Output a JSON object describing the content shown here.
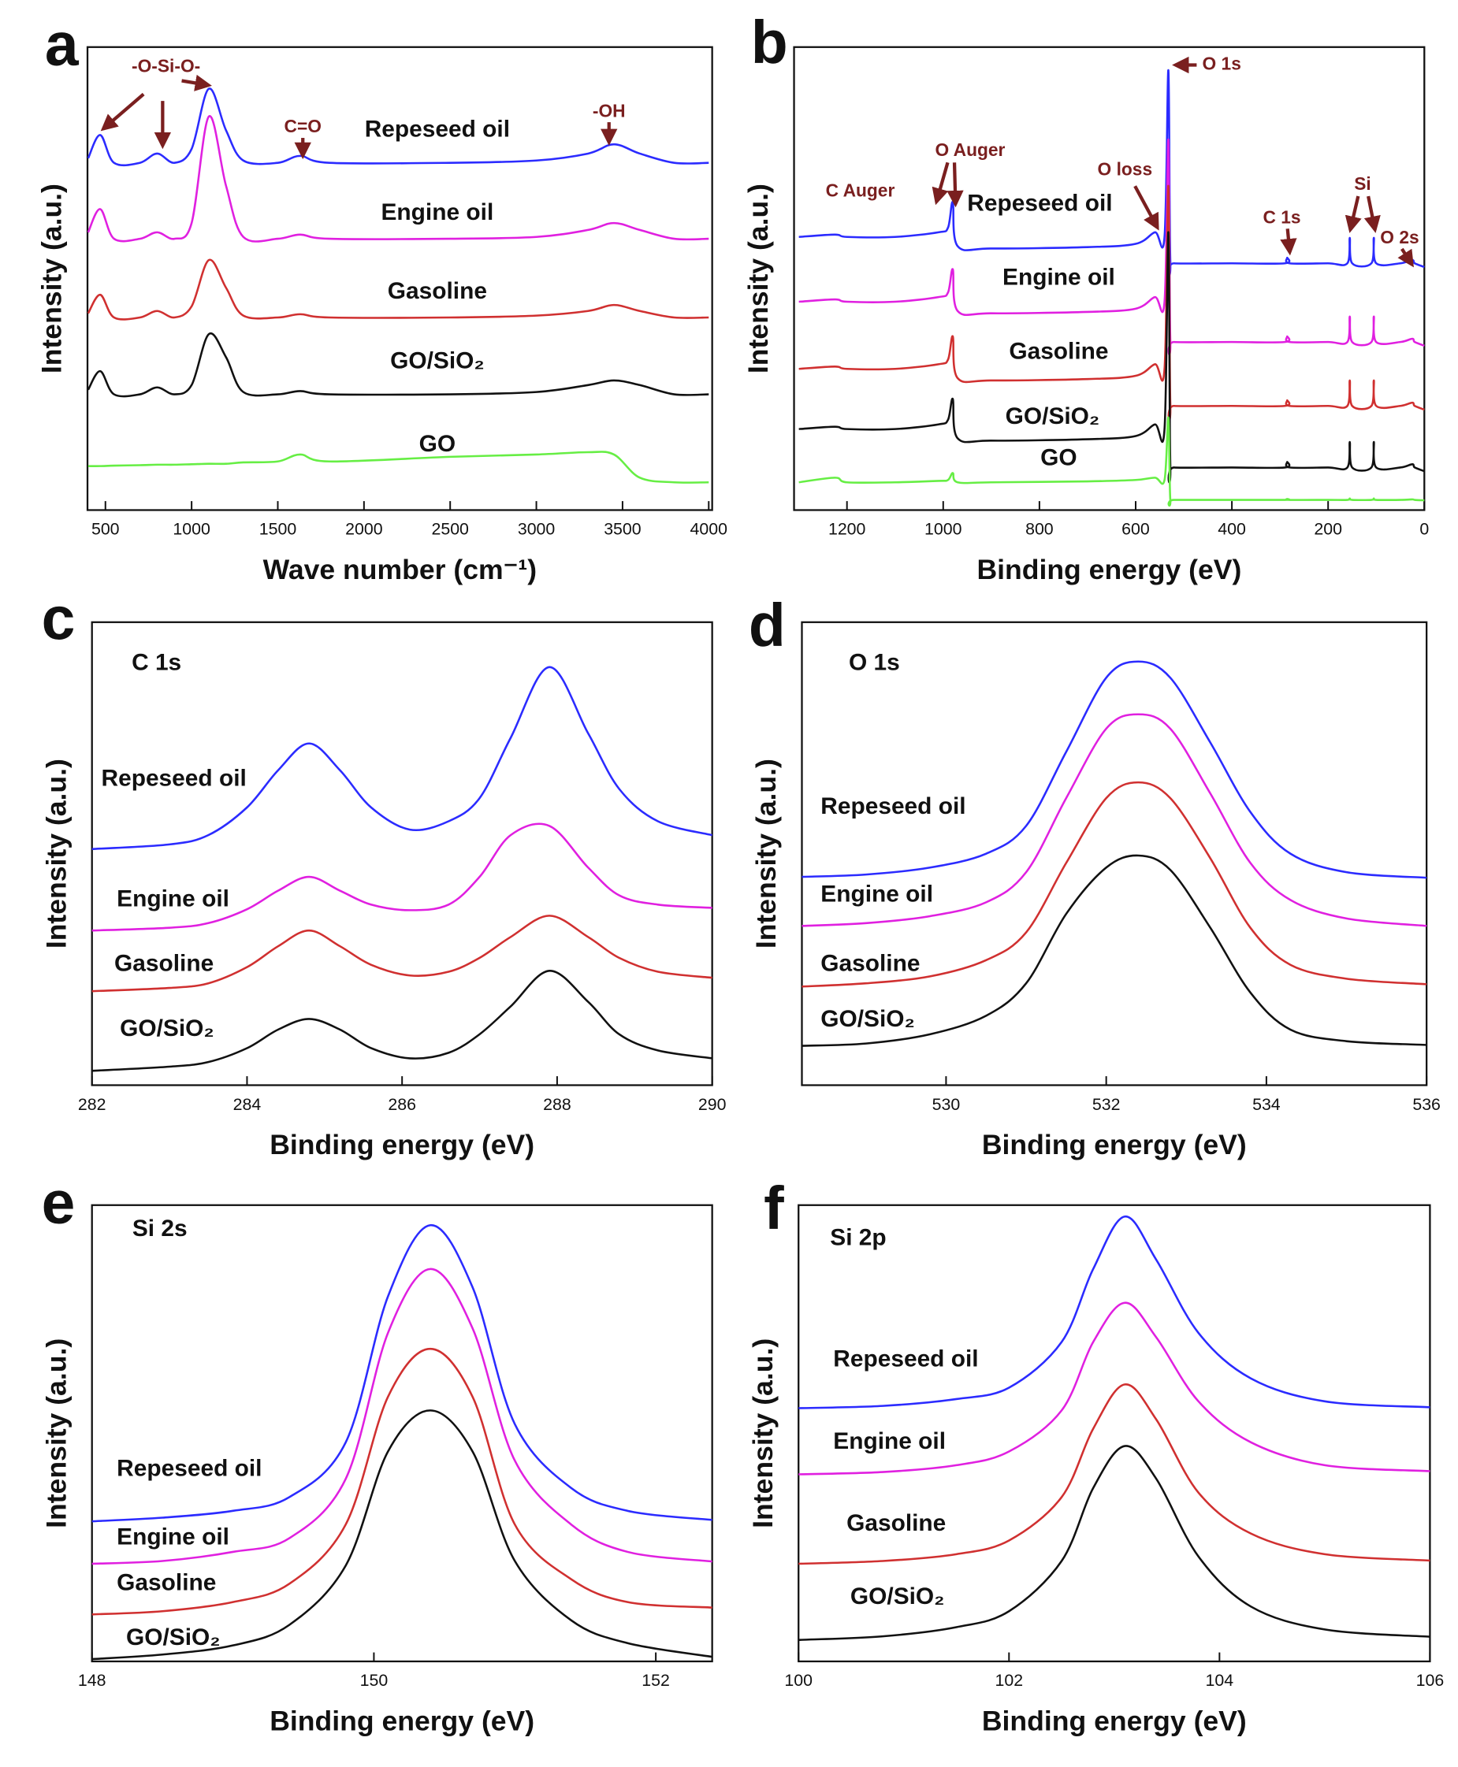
{
  "chart_data": [
    {
      "type": "line",
      "panel_label": "a",
      "x_label": "Wave number (cm⁻¹)",
      "y_label": "Intensity (a.u.)",
      "annotations": [
        "-O-Si-O-",
        "C=O",
        "-OH"
      ],
      "xlim": [
        396,
        4020
      ],
      "xticks": [
        500,
        1000,
        1500,
        2000,
        2500,
        3000,
        3500,
        4000
      ],
      "ylim": [
        0,
        100
      ],
      "x": [
        400,
        470,
        550,
        700,
        800,
        900,
        1000,
        1100,
        1200,
        1300,
        1500,
        1630,
        1800,
        2500,
        3000,
        3300,
        3450,
        3600,
        3800,
        4000
      ],
      "series": [
        {
          "name": "Repeseed oil",
          "color": "#2b2bff",
          "values": [
            76,
            81,
            75,
            75,
            77,
            75,
            78,
            91,
            82,
            75.5,
            75,
            76.5,
            75,
            75,
            75.5,
            77,
            79,
            77,
            75,
            75
          ]
        },
        {
          "name": "Engine oil",
          "color": "#e020e0",
          "values": [
            60,
            65,
            58.6,
            58.6,
            60,
            58.6,
            62,
            85,
            70,
            59,
            58.6,
            59.5,
            58.6,
            58.6,
            59,
            60.5,
            62,
            60.5,
            58.6,
            58.6
          ]
        },
        {
          "name": "Gasoline",
          "color": "#d03030",
          "values": [
            42.5,
            46.5,
            41.6,
            41.6,
            43,
            41.6,
            44,
            54,
            48,
            42,
            41.6,
            42.3,
            41.6,
            41.6,
            42,
            43,
            44.3,
            43,
            41.6,
            41.6
          ]
        },
        {
          "name": "GO/SiO₂",
          "color": "#111111",
          "values": [
            26,
            30,
            25,
            25,
            26.5,
            25,
            27,
            38,
            33,
            25.5,
            25,
            25.7,
            25,
            25,
            25.5,
            27,
            28,
            27,
            25,
            25
          ]
        },
        {
          "name": "GO",
          "color": "#66ee44",
          "values": [
            9.5,
            9.5,
            9.6,
            9.7,
            9.8,
            9.8,
            9.9,
            10,
            10,
            10.3,
            10.5,
            12,
            10.5,
            11.5,
            12,
            12.5,
            12,
            7,
            6,
            6
          ]
        }
      ]
    },
    {
      "type": "line",
      "panel_label": "b",
      "x_label": "Binding energy (eV)",
      "y_label": "Intensity (a.u.)",
      "annotations": [
        "O 1s",
        "O Auger",
        "C Auger",
        "O loss",
        "C 1s",
        "Si",
        "O 2s"
      ],
      "xlim": [
        1310,
        0
      ],
      "xticks": [
        1200,
        1000,
        800,
        600,
        400,
        200,
        0
      ],
      "ylim": [
        0,
        100
      ],
      "x": [
        1300,
        1225,
        1200,
        1100,
        1010,
        990,
        980,
        970,
        900,
        700,
        600,
        560,
        540,
        532,
        528,
        520,
        400,
        290,
        285,
        280,
        200,
        160,
        155,
        150,
        110,
        105,
        100,
        50,
        25,
        20,
        0
      ],
      "series": [
        {
          "name": "Repeseed oil",
          "color": "#2b2bff",
          "values": [
            59,
            59.5,
            59,
            59,
            60,
            61,
            66.5,
            57,
            56.5,
            56.8,
            57.5,
            60,
            59,
            95,
            54,
            53.3,
            53.3,
            53.3,
            54.5,
            53.3,
            53.3,
            53.3,
            58.8,
            53.3,
            53.3,
            58.8,
            53.3,
            53.3,
            54,
            53.3,
            52.5
          ]
        },
        {
          "name": "Engine oil",
          "color": "#e020e0",
          "values": [
            45,
            45.5,
            45,
            45,
            46,
            47,
            52,
            43,
            42.5,
            42.8,
            43.5,
            46,
            45,
            80,
            37,
            36.3,
            36.3,
            36.3,
            37.5,
            36.3,
            36.3,
            36.3,
            41.8,
            36.3,
            36.3,
            41.8,
            36.3,
            36.3,
            37,
            36.3,
            35.5
          ]
        },
        {
          "name": "Gasoline",
          "color": "#d03030",
          "values": [
            30.5,
            31,
            30.5,
            30.5,
            31.5,
            32.5,
            37.5,
            28.5,
            28,
            28.3,
            29,
            31.5,
            30.5,
            70,
            23.2,
            22.5,
            22.5,
            22.5,
            23.7,
            22.5,
            22.5,
            22.5,
            28,
            22.5,
            22.5,
            28,
            22.5,
            22.5,
            23.2,
            22.5,
            21.7
          ]
        },
        {
          "name": "GO/SiO₂",
          "color": "#111111",
          "values": [
            17.5,
            18,
            17.5,
            17.5,
            18.5,
            19.5,
            24,
            15.5,
            15,
            15.3,
            16,
            18.5,
            17.5,
            60,
            9.9,
            9.2,
            9.2,
            9.2,
            10.4,
            9.2,
            9.2,
            9.2,
            14.7,
            9.2,
            9.2,
            14.7,
            9.2,
            9.2,
            9.9,
            9.2,
            8.4
          ]
        },
        {
          "name": "GO",
          "color": "#66ee44",
          "values": [
            6,
            7,
            6,
            6,
            6.3,
            6.5,
            8,
            6,
            6,
            6.2,
            6.5,
            7,
            6.5,
            20,
            2.3,
            2.2,
            2.2,
            2.2,
            2.4,
            2.2,
            2.2,
            2.2,
            2.5,
            2.2,
            2.2,
            2.5,
            2.2,
            2.2,
            2.3,
            2.2,
            2.1
          ]
        }
      ]
    },
    {
      "type": "line",
      "panel_label": "c",
      "title": "C 1s",
      "x_label": "Binding energy (eV)",
      "y_label": "Intensity (a.u.)",
      "xlim": [
        282,
        290
      ],
      "xticks": [
        282,
        284,
        286,
        288,
        290
      ],
      "ylim": [
        0,
        100
      ],
      "x": [
        282,
        283,
        283.5,
        284,
        284.4,
        284.8,
        285.2,
        285.6,
        286.1,
        286.6,
        287,
        287.4,
        287.9,
        288.4,
        288.8,
        289.3,
        290
      ],
      "series": [
        {
          "name": "Repeseed oil",
          "color": "#2b2bff",
          "values": [
            51,
            52,
            54,
            60,
            68,
            73.8,
            68,
            60,
            55.2,
            57,
            62,
            75,
            90.3,
            76,
            64,
            57,
            54
          ]
        },
        {
          "name": "Engine oil",
          "color": "#e020e0",
          "values": [
            33.4,
            34,
            35,
            38,
            42,
            45,
            42,
            39,
            37.8,
            39,
            45,
            54,
            56,
            47,
            41,
            39,
            38.3
          ]
        },
        {
          "name": "Gasoline",
          "color": "#d03030",
          "values": [
            20.3,
            21,
            22,
            25.5,
            30,
            33.4,
            30,
            26,
            23.7,
            24.5,
            27.5,
            32,
            36.6,
            32,
            27.5,
            24.5,
            23.2
          ]
        },
        {
          "name": "GO/SiO₂",
          "color": "#111111",
          "values": [
            3.1,
            4,
            5,
            8,
            12,
            14.3,
            12,
            8,
            5.8,
            7,
            11,
            17,
            24.7,
            18,
            11,
            7.5,
            5.8
          ]
        }
      ]
    },
    {
      "type": "line",
      "panel_label": "d",
      "title": "O 1s",
      "x_label": "Binding energy (eV)",
      "y_label": "Intensity (a.u.)",
      "xlim": [
        528.2,
        536
      ],
      "xticks": [
        530,
        532,
        534,
        536
      ],
      "ylim": [
        0,
        100
      ],
      "x": [
        528.2,
        529,
        529.8,
        530.5,
        531,
        531.5,
        532,
        532.4,
        532.8,
        533.3,
        533.8,
        534.3,
        535,
        536
      ],
      "series": [
        {
          "name": "Repeseed oil",
          "color": "#2b2bff",
          "values": [
            45,
            45.5,
            47,
            50,
            56,
            72,
            88,
            91.5,
            88,
            74,
            59,
            50,
            46,
            44.8
          ]
        },
        {
          "name": "Engine oil",
          "color": "#e020e0",
          "values": [
            34.4,
            35,
            36.5,
            39.5,
            46,
            62,
            77,
            80.1,
            77,
            63,
            48,
            40,
            36,
            34.4
          ]
        },
        {
          "name": "Gasoline",
          "color": "#d03030",
          "values": [
            21.3,
            22,
            23.5,
            27,
            33,
            48,
            62,
            65.4,
            62,
            49,
            34,
            26,
            23,
            21.8
          ]
        },
        {
          "name": "GO/SiO₂",
          "color": "#111111",
          "values": [
            8.5,
            9,
            11,
            15,
            22,
            37,
            47,
            49.6,
            46.5,
            34,
            20,
            12,
            9.5,
            8.7
          ]
        }
      ]
    },
    {
      "type": "line",
      "panel_label": "e",
      "title": "Si 2s",
      "x_label": "Binding energy (eV)",
      "y_label": "Intensity (a.u.)",
      "xlim": [
        148,
        152.4
      ],
      "xticks": [
        148,
        150,
        152
      ],
      "ylim": [
        0,
        100
      ],
      "x": [
        148,
        148.5,
        149,
        149.4,
        149.8,
        150.1,
        150.4,
        150.7,
        151,
        151.4,
        151.8,
        152.4
      ],
      "series": [
        {
          "name": "Repeseed oil",
          "color": "#2b2bff",
          "values": [
            30.7,
            31.5,
            33,
            36,
            48,
            80,
            95.6,
            82,
            52,
            38,
            33,
            31
          ]
        },
        {
          "name": "Engine oil",
          "color": "#e020e0",
          "values": [
            21.4,
            22,
            24,
            27,
            40,
            72,
            86,
            73,
            44,
            30,
            24,
            21.9
          ]
        },
        {
          "name": "Gasoline",
          "color": "#d03030",
          "values": [
            10.3,
            11,
            13,
            17,
            30,
            58,
            68.5,
            58,
            30,
            18,
            13,
            11.8
          ]
        },
        {
          "name": "GO/SiO₂",
          "color": "#111111",
          "values": [
            0.5,
            1.5,
            3.5,
            8,
            21,
            46,
            55,
            46,
            22,
            9,
            4,
            1
          ]
        }
      ]
    },
    {
      "type": "line",
      "panel_label": "f",
      "title": "Si 2p",
      "x_label": "Binding energy (eV)",
      "y_label": "Intensity (a.u.)",
      "xlim": [
        100,
        106
      ],
      "xticks": [
        100,
        102,
        104,
        106
      ],
      "ylim": [
        0,
        100
      ],
      "x": [
        100,
        100.8,
        101.5,
        102,
        102.5,
        102.8,
        103.1,
        103.4,
        103.8,
        104.3,
        105,
        106
      ],
      "series": [
        {
          "name": "Repeseed oil",
          "color": "#2b2bff",
          "values": [
            55.5,
            56,
            57.5,
            60,
            70,
            86,
            97.5,
            88,
            72,
            62,
            57,
            55.7
          ]
        },
        {
          "name": "Engine oil",
          "color": "#e020e0",
          "values": [
            41,
            41.5,
            43,
            46,
            55,
            70,
            78.6,
            71,
            57,
            48,
            43,
            41.7
          ]
        },
        {
          "name": "Gasoline",
          "color": "#d03030",
          "values": [
            21.4,
            22,
            23.5,
            26.5,
            36,
            51,
            60.7,
            53,
            37,
            28,
            23.5,
            22.1
          ]
        },
        {
          "name": "GO/SiO₂",
          "color": "#111111",
          "values": [
            4.7,
            5.5,
            7.5,
            11,
            22,
            38,
            47.2,
            40,
            23,
            12,
            7,
            5.4
          ]
        }
      ]
    }
  ]
}
